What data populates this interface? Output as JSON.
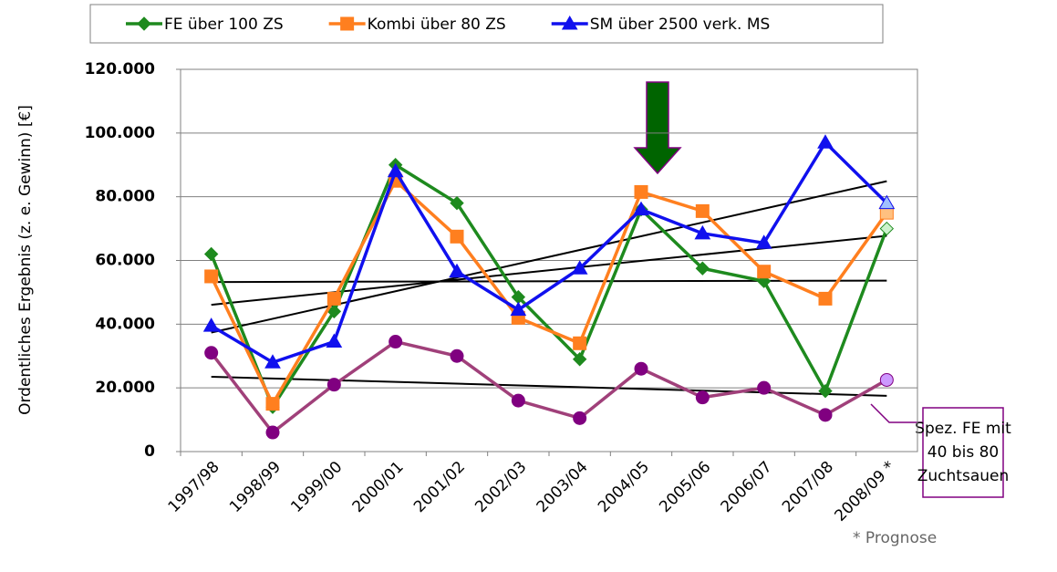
{
  "chart_data": {
    "type": "line",
    "categories": [
      "1997/98",
      "1998/99",
      "1999/00",
      "2000/01",
      "2001/02",
      "2002/03",
      "2003/04",
      "2004/05",
      "2005/06",
      "2006/07",
      "2007/08",
      "2008/09 *"
    ],
    "series": [
      {
        "name": "FE über 100 ZS",
        "color": "#1e8a1e",
        "marker": "diamond",
        "marker_color": "#1e8a1e",
        "forecast_color": "#ccf2cc",
        "values": [
          62000,
          14000,
          44000,
          90000,
          78000,
          48500,
          29000,
          76000,
          57500,
          53500,
          19000,
          70000
        ]
      },
      {
        "name": "Kombi über 80 ZS",
        "color": "#ff7f1f",
        "marker": "square",
        "marker_color": "#ff7f1f",
        "forecast_color": "#ffc080",
        "values": [
          55000,
          15000,
          48000,
          85000,
          67500,
          42000,
          34000,
          81500,
          75500,
          56500,
          48000,
          75000
        ]
      },
      {
        "name": "SM über 2500 verk. MS",
        "color": "#1010ee",
        "marker": "triangle",
        "marker_color": "#1010ee",
        "forecast_color": "#a0c0ff",
        "values": [
          39500,
          28000,
          34500,
          88000,
          56500,
          44500,
          57500,
          76000,
          68500,
          65500,
          97000,
          78000
        ]
      },
      {
        "color": "#a0407a",
        "marker": "circle",
        "marker_color": "#800080",
        "forecast_color": "#cc99ff",
        "values": [
          31000,
          6000,
          21000,
          34500,
          30000,
          16000,
          10500,
          26000,
          17000,
          20000,
          11500,
          22500
        ]
      }
    ],
    "trendlines": true,
    "ylabel": "Ordentliches Ergebnis (z. e. Gewinn) [€]",
    "ylim": [
      0,
      120000
    ],
    "yticks": [
      0,
      {
        "value": 20000,
        "label": "20.000"
      },
      {
        "value": 40000,
        "label": "40.000"
      },
      {
        "value": 60000,
        "label": "60.000"
      },
      {
        "value": 80000,
        "label": "80.000"
      },
      {
        "value": 100000,
        "label": "100.000"
      },
      {
        "value": 120000,
        "label": "120.000"
      }
    ],
    "grid": true,
    "legend": "top",
    "annotation": [
      "Spez. FE mit",
      "40 bis 80",
      "Zuchtsauen"
    ],
    "footnote": "* Prognose"
  }
}
